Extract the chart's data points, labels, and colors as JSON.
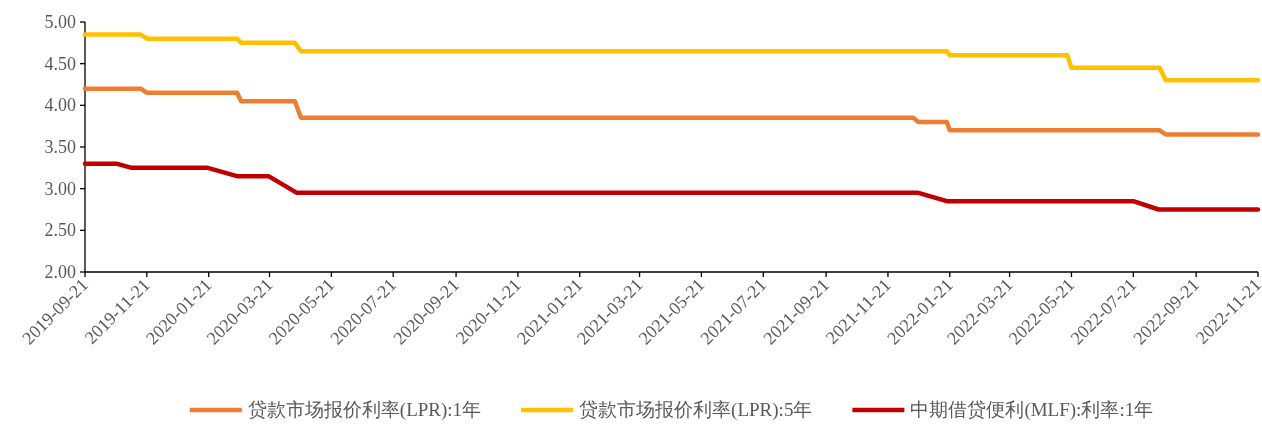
{
  "chart_data": {
    "type": "line",
    "legend": "bottom",
    "grid": false,
    "line_style": "solid",
    "marker": "none",
    "xlim": [
      "2019-09-21",
      "2022-11-21"
    ],
    "xticks": [
      "2019-09-21",
      "2019-11-21",
      "2020-01-21",
      "2020-03-21",
      "2020-05-21",
      "2020-07-21",
      "2020-09-21",
      "2020-11-21",
      "2021-01-21",
      "2021-03-21",
      "2021-05-21",
      "2021-07-21",
      "2021-09-21",
      "2021-11-21",
      "2022-01-21",
      "2022-03-21",
      "2022-05-21",
      "2022-07-21",
      "2022-09-21",
      "2022-11-21"
    ],
    "ylim": [
      2,
      5
    ],
    "yticks": [
      {
        "value": 2,
        "label": "2.00"
      },
      {
        "value": 2.5,
        "label": "2.50"
      },
      {
        "value": 3,
        "label": "3.00"
      },
      {
        "value": 3.5,
        "label": "3.50"
      },
      {
        "value": 4,
        "label": "4.00"
      },
      {
        "value": 4.5,
        "label": "4.50"
      },
      {
        "value": 5,
        "label": "5.00"
      }
    ],
    "series": [
      {
        "name": "贷款市场报价利率(LPR):1年",
        "color": "#ed7d31",
        "x": [
          "2019-09-21",
          "2019-11-15",
          "2019-11-21",
          "2020-02-18",
          "2020-02-22",
          "2020-04-15",
          "2020-04-21",
          "2021-12-16",
          "2021-12-21",
          "2022-01-18",
          "2022-01-21",
          "2022-08-16",
          "2022-08-22",
          "2022-11-21"
        ],
        "values": [
          4.2,
          4.2,
          4.15,
          4.15,
          4.05,
          4.05,
          3.85,
          3.85,
          3.8,
          3.8,
          3.7,
          3.7,
          3.65,
          3.65
        ]
      },
      {
        "name": "贷款市场报价利率(LPR):5年",
        "color": "#ffc000",
        "x": [
          "2019-09-21",
          "2019-11-15",
          "2019-11-21",
          "2020-02-18",
          "2020-02-22",
          "2020-04-15",
          "2020-04-21",
          "2022-01-18",
          "2022-01-21",
          "2022-05-17",
          "2022-05-21",
          "2022-08-16",
          "2022-08-22",
          "2022-11-21"
        ],
        "values": [
          4.85,
          4.85,
          4.8,
          4.8,
          4.75,
          4.75,
          4.65,
          4.65,
          4.6,
          4.6,
          4.45,
          4.45,
          4.3,
          4.3
        ]
      },
      {
        "name": "中期借贷便利(MLF):利率:1年",
        "color": "#c00000",
        "x": [
          "2019-09-21",
          "2019-10-22",
          "2019-11-06",
          "2020-01-20",
          "2020-02-18",
          "2020-03-20",
          "2020-04-17",
          "2021-12-21",
          "2022-01-18",
          "2022-07-21",
          "2022-08-15",
          "2022-11-21"
        ],
        "values": [
          3.3,
          3.3,
          3.25,
          3.25,
          3.15,
          3.15,
          2.95,
          2.95,
          2.85,
          2.85,
          2.75,
          2.75
        ]
      }
    ]
  }
}
